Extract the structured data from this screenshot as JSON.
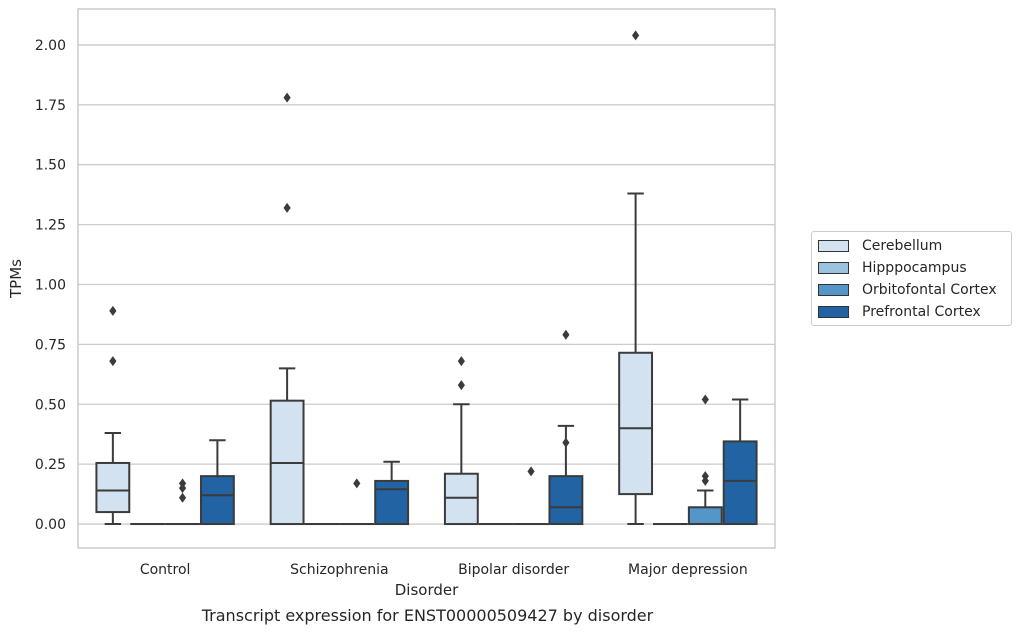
{
  "chart_data": {
    "type": "box",
    "title": "",
    "caption": "Transcript expression for ENST00000509427 by disorder",
    "xlabel": "Disorder",
    "ylabel": "TPMs",
    "ylim": [
      -0.1,
      2.15
    ],
    "yticks": [
      "0.00",
      "0.25",
      "0.50",
      "0.75",
      "1.00",
      "1.25",
      "1.50",
      "1.75",
      "2.00"
    ],
    "ytick_values": [
      0,
      0.25,
      0.5,
      0.75,
      1.0,
      1.25,
      1.5,
      1.75,
      2.0
    ],
    "grid": "horizontal",
    "legend_position": "right",
    "categories": [
      "Control",
      "Schizophrenia",
      "Bipolar disorder",
      "Major depression"
    ],
    "series": [
      {
        "name": "Cerebellum",
        "color": "#d3e2f1",
        "boxes": [
          {
            "min": 0.0,
            "q1": 0.05,
            "median": 0.14,
            "q3": 0.255,
            "max": 0.38,
            "outliers": [
              0.68,
              0.89
            ]
          },
          {
            "min": 0.0,
            "q1": 0.0,
            "median": 0.255,
            "q3": 0.515,
            "max": 0.65,
            "outliers": [
              1.32,
              1.78
            ]
          },
          {
            "min": 0.0,
            "q1": 0.0,
            "median": 0.11,
            "q3": 0.21,
            "max": 0.5,
            "outliers": [
              0.58,
              0.68
            ]
          },
          {
            "min": 0.0,
            "q1": 0.125,
            "median": 0.4,
            "q3": 0.715,
            "max": 1.38,
            "outliers": [
              2.04
            ]
          }
        ]
      },
      {
        "name": "Hipppocampus",
        "color": "#9cc3de",
        "boxes": [
          {
            "min": 0.0,
            "q1": 0.0,
            "median": 0.0,
            "q3": 0.0,
            "max": 0.0,
            "outliers": []
          },
          {
            "min": 0.0,
            "q1": 0.0,
            "median": 0.0,
            "q3": 0.0,
            "max": 0.0,
            "outliers": []
          },
          {
            "min": 0.0,
            "q1": 0.0,
            "median": 0.0,
            "q3": 0.0,
            "max": 0.0,
            "outliers": []
          },
          {
            "min": 0.0,
            "q1": 0.0,
            "median": 0.0,
            "q3": 0.0,
            "max": 0.0,
            "outliers": []
          }
        ]
      },
      {
        "name": "Orbitofontal Cortex",
        "color": "#5596c8",
        "boxes": [
          {
            "min": 0.0,
            "q1": 0.0,
            "median": 0.0,
            "q3": 0.0,
            "max": 0.0,
            "outliers": [
              0.11,
              0.15,
              0.17
            ]
          },
          {
            "min": 0.0,
            "q1": 0.0,
            "median": 0.0,
            "q3": 0.0,
            "max": 0.0,
            "outliers": [
              0.17
            ]
          },
          {
            "min": 0.0,
            "q1": 0.0,
            "median": 0.0,
            "q3": 0.0,
            "max": 0.0,
            "outliers": [
              0.22
            ]
          },
          {
            "min": 0.0,
            "q1": 0.0,
            "median": 0.0,
            "q3": 0.07,
            "max": 0.14,
            "outliers": [
              0.18,
              0.2,
              0.52
            ]
          }
        ]
      },
      {
        "name": "Prefrontal Cortex",
        "color": "#2163a3",
        "boxes": [
          {
            "min": 0.0,
            "q1": 0.0,
            "median": 0.12,
            "q3": 0.2,
            "max": 0.35,
            "outliers": []
          },
          {
            "min": 0.0,
            "q1": 0.0,
            "median": 0.145,
            "q3": 0.18,
            "max": 0.26,
            "outliers": []
          },
          {
            "min": 0.0,
            "q1": 0.0,
            "median": 0.07,
            "q3": 0.2,
            "max": 0.41,
            "outliers": [
              0.34,
              0.79
            ]
          },
          {
            "min": 0.0,
            "q1": 0.0,
            "median": 0.18,
            "q3": 0.345,
            "max": 0.52,
            "outliers": []
          }
        ]
      }
    ]
  }
}
